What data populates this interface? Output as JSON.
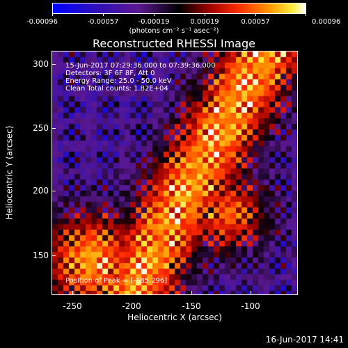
{
  "colorbar": {
    "tick_labels": [
      "-0.00096",
      "-0.00057",
      "-0.00019",
      "0.00019",
      "0.00057",
      "0.00096"
    ],
    "units": "(photons cm⁻² s⁻¹ asec⁻²)"
  },
  "title": "Reconstructed RHESSI Image",
  "annotations": {
    "time_range": "15-Jun-2017 07:29:36.000 to 07:39:36.000",
    "detectors": "Detectors: 3F 6F 8F, Att 0",
    "energy": "Energy Range: 25.0 - 50.0 keV",
    "clean": "Clean     Total counts: 1.82E+04",
    "peak": "Position of Peak = [-185,296]"
  },
  "axes": {
    "x_label": "Heliocentric X (arcsec)",
    "y_label": "Heliocentric Y (arcsec)",
    "x_ticks": [
      "-250",
      "-200",
      "-150",
      "-100"
    ],
    "y_ticks": [
      "300",
      "250",
      "200",
      "150"
    ]
  },
  "timestamp": "16-Jun-2017 14:41",
  "colors": {
    "background": "#000000",
    "foreground": "#ffffff",
    "colormap": [
      "#0000ff",
      "#2b00b0",
      "#5a18a0",
      "#000000",
      "#8a0000",
      "#ff2000",
      "#ff8a00",
      "#ffe800",
      "#ffffff"
    ]
  }
}
